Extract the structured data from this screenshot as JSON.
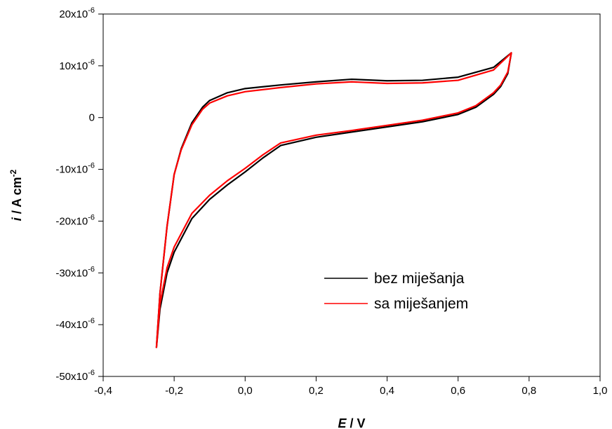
{
  "chart_data": {
    "type": "line",
    "title": "",
    "xlabel": {
      "symbol": "E",
      "unit": "V"
    },
    "ylabel": {
      "symbol": "i",
      "unit": "A cm",
      "unit_exp": "-2"
    },
    "xlim": [
      -0.4,
      1.0
    ],
    "ylim": [
      -5e-05,
      2e-05
    ],
    "grid": false,
    "legend_position": "lower-right",
    "x_ticks": [
      {
        "value": -0.4,
        "label": "-0,4"
      },
      {
        "value": -0.2,
        "label": "-0,2"
      },
      {
        "value": 0.0,
        "label": "0,0"
      },
      {
        "value": 0.2,
        "label": "0,2"
      },
      {
        "value": 0.4,
        "label": "0,4"
      },
      {
        "value": 0.6,
        "label": "0,6"
      },
      {
        "value": 0.8,
        "label": "0,8"
      },
      {
        "value": 1.0,
        "label": "1,0"
      }
    ],
    "y_ticks": [
      {
        "value": 2e-05,
        "mant": "20x10",
        "exp": "-6"
      },
      {
        "value": 1e-05,
        "mant": "10x10",
        "exp": "-6"
      },
      {
        "value": 0,
        "mant": "0",
        "exp": ""
      },
      {
        "value": -1e-05,
        "mant": "-10x10",
        "exp": "-6"
      },
      {
        "value": -2e-05,
        "mant": "-20x10",
        "exp": "-6"
      },
      {
        "value": -3e-05,
        "mant": "-30x10",
        "exp": "-6"
      },
      {
        "value": -4e-05,
        "mant": "-40x10",
        "exp": "-6"
      },
      {
        "value": -5e-05,
        "mant": "-50x10",
        "exp": "-6"
      }
    ],
    "series": [
      {
        "name": "bez miješanja",
        "color": "#000000",
        "x": [
          -0.25,
          -0.24,
          -0.22,
          -0.2,
          -0.18,
          -0.15,
          -0.12,
          -0.1,
          -0.05,
          0.0,
          0.1,
          0.2,
          0.3,
          0.4,
          0.5,
          0.6,
          0.7,
          0.75,
          0.74,
          0.72,
          0.7,
          0.65,
          0.6,
          0.5,
          0.4,
          0.3,
          0.2,
          0.1,
          0.05,
          0.0,
          -0.05,
          -0.1,
          -0.15,
          -0.2,
          -0.22,
          -0.24,
          -0.25
        ],
        "y": [
          -4.45e-05,
          -3.4e-05,
          -2.1e-05,
          -1.1e-05,
          -6e-06,
          -1e-06,
          2e-06,
          3.3e-06,
          4.8e-06,
          5.6e-06,
          6.3e-06,
          6.9e-06,
          7.4e-06,
          7.1e-06,
          7.2e-06,
          7.8e-06,
          9.7e-06,
          1.25e-05,
          8.5e-06,
          6e-06,
          4.5e-06,
          2e-06,
          6e-07,
          -8e-07,
          -1.8e-06,
          -2.8e-06,
          -3.8e-06,
          -5.4e-06,
          -7.8e-06,
          -1.05e-05,
          -1.3e-05,
          -1.58e-05,
          -1.95e-05,
          -2.6e-05,
          -3e-05,
          -3.7e-05,
          -4.45e-05
        ]
      },
      {
        "name": "sa miješanjem",
        "color": "#ff0000",
        "x": [
          -0.25,
          -0.24,
          -0.22,
          -0.2,
          -0.18,
          -0.15,
          -0.12,
          -0.1,
          -0.05,
          0.0,
          0.1,
          0.2,
          0.3,
          0.4,
          0.5,
          0.6,
          0.7,
          0.75,
          0.74,
          0.72,
          0.7,
          0.65,
          0.6,
          0.5,
          0.4,
          0.3,
          0.2,
          0.1,
          0.05,
          0.0,
          -0.05,
          -0.1,
          -0.15,
          -0.2,
          -0.22,
          -0.24,
          -0.25
        ],
        "y": [
          -4.45e-05,
          -3.4e-05,
          -2.1e-05,
          -1.1e-05,
          -6.2e-06,
          -1.4e-06,
          1.6e-06,
          2.8e-06,
          4.2e-06,
          5e-06,
          5.8e-06,
          6.5e-06,
          6.9e-06,
          6.6e-06,
          6.7e-06,
          7.2e-06,
          9.2e-06,
          1.25e-05,
          8.8e-06,
          6.3e-06,
          4.8e-06,
          2.3e-06,
          9e-07,
          -5e-07,
          -1.5e-06,
          -2.5e-06,
          -3.4e-06,
          -4.9e-06,
          -7.2e-06,
          -9.8e-06,
          -1.22e-05,
          -1.5e-05,
          -1.85e-05,
          -2.5e-05,
          -2.9e-05,
          -3.6e-05,
          -4.45e-05
        ]
      }
    ]
  }
}
